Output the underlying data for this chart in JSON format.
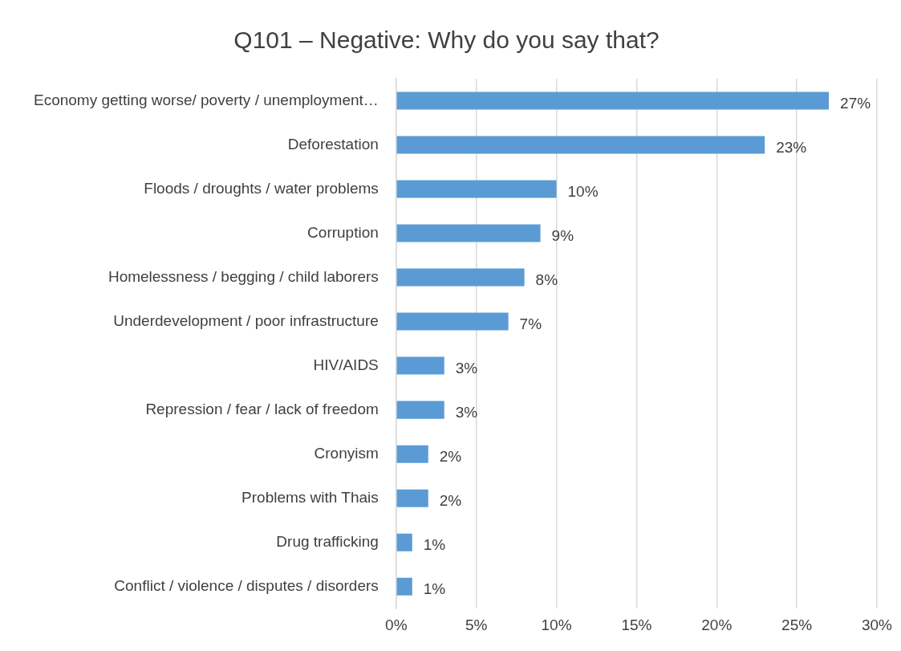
{
  "chart_data": {
    "type": "bar",
    "orientation": "horizontal",
    "title": "Q101 – Negative: Why do you say that?",
    "categories": [
      "Economy getting worse/ poverty / unemployment…",
      "Deforestation",
      "Floods / droughts / water problems",
      "Corruption",
      "Homelessness / begging / child laborers",
      "Underdevelopment / poor infrastructure",
      "HIV/AIDS",
      "Repression / fear / lack of freedom",
      "Cronyism",
      "Problems with Thais",
      "Drug trafficking",
      "Conflict / violence / disputes / disorders"
    ],
    "values": [
      27,
      23,
      10,
      9,
      8,
      7,
      3,
      3,
      2,
      2,
      1,
      1
    ],
    "value_labels": [
      "27%",
      "23%",
      "10%",
      "9%",
      "8%",
      "7%",
      "3%",
      "3%",
      "2%",
      "2%",
      "1%",
      "1%"
    ],
    "color": "#5b9bd5",
    "xlim": [
      0,
      30
    ],
    "xticks": [
      {
        "value": 0,
        "label": "0%"
      },
      {
        "value": 5,
        "label": "5%"
      },
      {
        "value": 10,
        "label": "10%"
      },
      {
        "value": 15,
        "label": "15%"
      },
      {
        "value": 20,
        "label": "20%"
      },
      {
        "value": 25,
        "label": "25%"
      },
      {
        "value": 30,
        "label": "30%"
      }
    ],
    "grid": "x",
    "legend": false
  }
}
